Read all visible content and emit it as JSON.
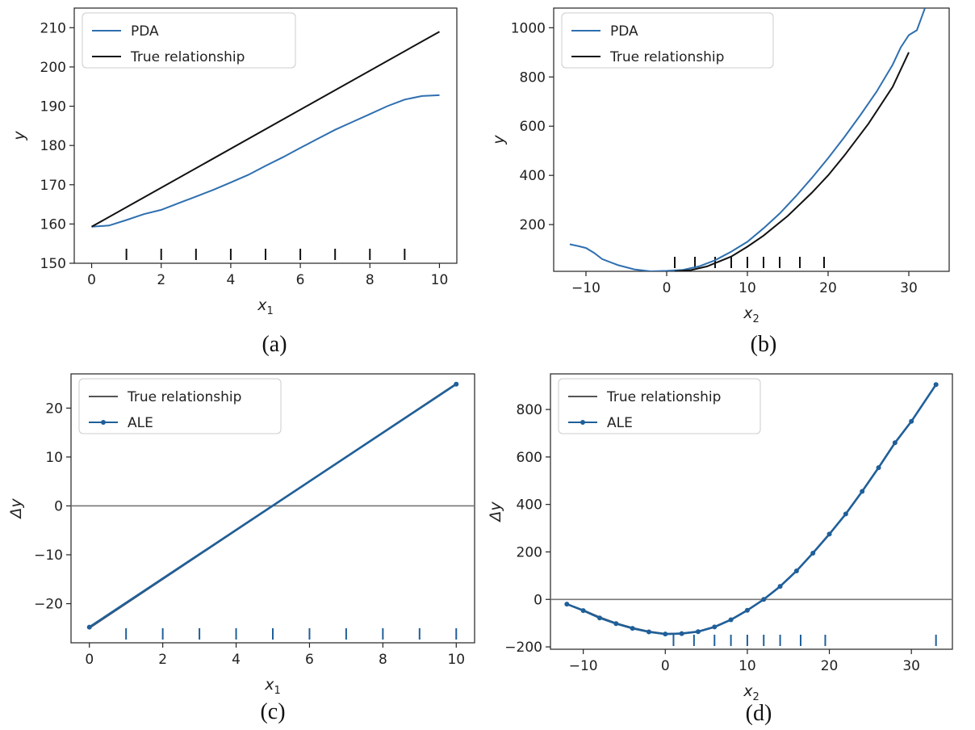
{
  "chart_data": [
    {
      "type": "line",
      "caption": "(a)",
      "xlabel": "x",
      "xlabel_sub": "1",
      "ylabel": "y",
      "xlim": [
        -0.5,
        10.5
      ],
      "ylim": [
        150,
        215
      ],
      "xticks": [
        0,
        2,
        4,
        6,
        8,
        10
      ],
      "yticks": [
        150,
        160,
        170,
        180,
        190,
        200,
        210
      ],
      "legend_position": "top-left",
      "series": [
        {
          "name": "PDA",
          "color": "#2f6fb0",
          "marker": false,
          "x": [
            0,
            0.5,
            1,
            1.5,
            2,
            2.5,
            3,
            3.5,
            4,
            4.5,
            5,
            5.5,
            6,
            6.5,
            7,
            7.5,
            8,
            8.5,
            9,
            9.5,
            10
          ],
          "y": [
            159.3,
            159.6,
            161.0,
            162.5,
            163.6,
            165.3,
            167.0,
            168.7,
            170.6,
            172.5,
            174.8,
            177.0,
            179.4,
            181.7,
            184.0,
            186.0,
            188.0,
            190.0,
            191.7,
            192.6,
            192.8
          ]
        },
        {
          "name": "True relationship",
          "color": "#111111",
          "marker": false,
          "x": [
            0,
            10
          ],
          "y": [
            159.3,
            209.0
          ]
        }
      ],
      "rug": [
        1,
        2,
        3,
        4,
        5,
        6,
        7,
        8,
        9
      ]
    },
    {
      "type": "line",
      "caption": "(b)",
      "xlabel": "x",
      "xlabel_sub": "2",
      "ylabel": "y",
      "xlim": [
        -14,
        35
      ],
      "ylim": [
        10,
        1080
      ],
      "xticks": [
        -10,
        0,
        10,
        20,
        30
      ],
      "yticks": [
        200,
        400,
        600,
        800,
        1000
      ],
      "legend_position": "top-left",
      "series": [
        {
          "name": "PDA",
          "color": "#2f6fb0",
          "marker": false,
          "x": [
            -12,
            -11,
            -10,
            -9,
            -8,
            -6,
            -4,
            -2,
            0,
            2,
            4,
            6,
            8,
            10,
            12,
            14,
            16,
            18,
            20,
            22,
            24,
            26,
            28,
            29,
            30,
            31,
            32
          ],
          "y": [
            120,
            113,
            105,
            85,
            60,
            35,
            18,
            10,
            12,
            16,
            30,
            55,
            90,
            130,
            185,
            245,
            315,
            390,
            470,
            555,
            645,
            740,
            850,
            920,
            970,
            990,
            1080
          ]
        },
        {
          "name": "True relationship",
          "color": "#111111",
          "marker": false,
          "x": [
            1,
            3,
            5,
            8,
            10,
            12,
            15,
            18,
            20,
            22,
            25,
            28,
            30
          ],
          "y": [
            10,
            15,
            30,
            70,
            110,
            155,
            235,
            330,
            400,
            480,
            610,
            760,
            900
          ]
        }
      ],
      "rug": [
        1,
        3.5,
        6,
        8,
        10,
        12,
        14,
        16.5,
        19.5
      ]
    },
    {
      "type": "line",
      "caption": "(c)",
      "xlabel": "x",
      "xlabel_sub": "1",
      "ylabel": "Δy",
      "xlim": [
        -0.5,
        10.5
      ],
      "ylim": [
        -28,
        27
      ],
      "xticks": [
        0,
        2,
        4,
        6,
        8,
        10
      ],
      "yticks": [
        -20,
        -10,
        0,
        10,
        20
      ],
      "hline": 0,
      "legend_position": "top-left",
      "series": [
        {
          "name": "True relationship",
          "color": "#555555",
          "marker": false,
          "x": [
            0,
            10
          ],
          "y": [
            -25,
            25
          ]
        },
        {
          "name": "ALE",
          "color": "#1f5f99",
          "marker": true,
          "x": [
            0,
            10
          ],
          "y": [
            -24.8,
            24.9
          ]
        }
      ],
      "rug": [
        1,
        2,
        3,
        4,
        5,
        6,
        7,
        8,
        9,
        10
      ]
    },
    {
      "type": "line",
      "caption": "(d)",
      "xlabel": "x",
      "xlabel_sub": "2",
      "ylabel": "Δy",
      "xlim": [
        -14,
        35
      ],
      "ylim": [
        -210,
        950
      ],
      "xticks": [
        -10,
        0,
        10,
        20,
        30
      ],
      "yticks": [
        -200,
        0,
        200,
        400,
        600,
        800
      ],
      "hline": 0,
      "legend_position": "top-left",
      "series": [
        {
          "name": "True relationship",
          "color": "#555555",
          "marker": false,
          "x": [
            -12,
            -10,
            -8,
            -6,
            -4,
            -2,
            0,
            2,
            4,
            6,
            8,
            10,
            12,
            14,
            16,
            18,
            20,
            22,
            24,
            26,
            28,
            30
          ],
          "y": [
            -20,
            -45,
            -75,
            -100,
            -120,
            -135,
            -145,
            -143,
            -135,
            -115,
            -85,
            -45,
            0,
            55,
            120,
            195,
            275,
            360,
            455,
            555,
            660,
            750
          ]
        },
        {
          "name": "ALE",
          "color": "#1f5f99",
          "marker": true,
          "x": [
            -12,
            -10,
            -8,
            -6,
            -4,
            -2,
            0,
            2,
            4,
            6,
            8,
            10,
            12,
            14,
            16,
            18,
            20,
            22,
            24,
            26,
            28,
            30,
            33
          ],
          "y": [
            -20,
            -47,
            -78,
            -102,
            -122,
            -137,
            -146,
            -144,
            -136,
            -116,
            -86,
            -46,
            0,
            55,
            120,
            195,
            275,
            360,
            455,
            555,
            660,
            750,
            905
          ]
        }
      ],
      "rug": [
        1,
        3.5,
        6,
        8,
        10,
        12,
        14,
        16.5,
        19.5,
        33
      ]
    }
  ]
}
